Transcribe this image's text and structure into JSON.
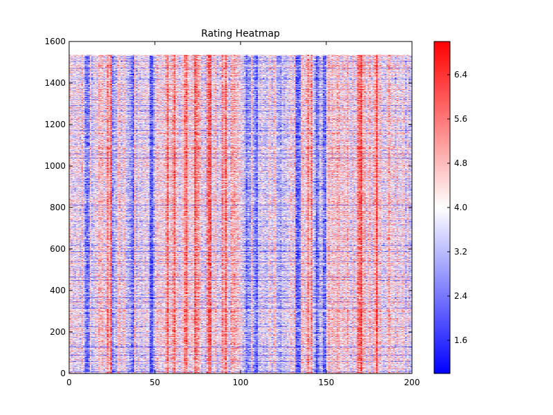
{
  "chart_data": {
    "type": "heatmap",
    "title": "Rating Heatmap",
    "xlabel": "",
    "ylabel": "",
    "xlim": [
      0,
      200
    ],
    "ylim": [
      0,
      1600
    ],
    "x_ticks": [
      0,
      50,
      100,
      150,
      200
    ],
    "y_ticks": [
      0,
      200,
      400,
      600,
      800,
      1000,
      1200,
      1400,
      1600
    ],
    "data_extent": {
      "columns": 200,
      "rows": 1535
    },
    "colormap": "bwr",
    "color_low": "#0000ff",
    "color_mid": "#ffffff",
    "color_high": "#ff0000",
    "value_range": [
      1.0,
      7.0
    ],
    "colorbar_ticks": [
      1.6,
      2.4,
      3.2,
      4.0,
      4.8,
      5.6,
      6.4
    ],
    "colorbar_tick_labels": [
      "1.6",
      "2.4",
      "3.2",
      "4.0",
      "4.8",
      "5.6",
      "6.4"
    ],
    "grid": false,
    "pattern_note_columns_red": [
      18,
      23,
      57,
      60,
      61,
      68,
      73,
      75,
      81,
      90,
      95,
      140,
      169,
      178
    ],
    "pattern_note_columns_blue": [
      10,
      26,
      36,
      48,
      104,
      108,
      122,
      133,
      144,
      148
    ]
  }
}
